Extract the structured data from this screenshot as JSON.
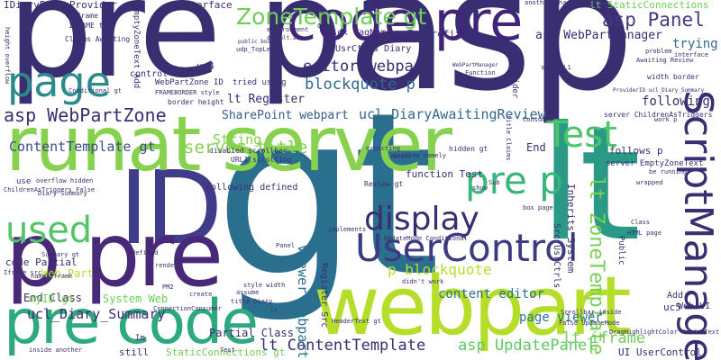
{
  "words": [
    {
      "text": "gt",
      "color": "#2b6f8e"
    },
    {
      "text": "asp",
      "color": "#3a2e72"
    },
    {
      "text": "lt",
      "color": "#2a9a86"
    },
    {
      "text": "pre p",
      "color": "#3a2e72"
    },
    {
      "text": "ID",
      "color": "#3f3c8a"
    },
    {
      "text": "runat server",
      "color": "#86d24f"
    },
    {
      "text": "webpart",
      "color": "#b5de2b"
    },
    {
      "text": "code pre",
      "color": "#41257a"
    },
    {
      "text": "pre code",
      "color": "#2ea87e"
    },
    {
      "text": "p pre",
      "color": "#482878"
    },
    {
      "text": "page",
      "color": "#2c8a8a"
    },
    {
      "text": "ScriptManager",
      "color": "#3a2e72"
    },
    {
      "text": "UserControl",
      "color": "#3d3a84"
    },
    {
      "text": "Test",
      "color": "#4dc36b"
    },
    {
      "text": "display",
      "color": "#3a2e72"
    },
    {
      "text": "used",
      "color": "#52c569"
    },
    {
      "text": "pre p",
      "color": "#35b779"
    },
    {
      "text": "ZoneTemplate gt",
      "color": "#6ece58"
    },
    {
      "text": "asp WebPartZone",
      "color": "#3a2e72"
    },
    {
      "text": "editor webpart",
      "color": "#3a2e72"
    },
    {
      "text": "blockquote p",
      "color": "#31688e"
    },
    {
      "text": "asp Panel",
      "color": "#3d3a84"
    },
    {
      "text": "asp WebPartManager",
      "color": "#3a2e72"
    },
    {
      "text": "SharePoint webpart",
      "color": "#355f8d"
    },
    {
      "text": "ucl_DiaryAwaitingReview",
      "color": "#31688e"
    },
    {
      "text": "ContentTemplate gt",
      "color": "#3e4a89"
    },
    {
      "text": "server title",
      "color": "#86d24f"
    },
    {
      "text": "lt ZoneTemplate",
      "color": "#7ad151"
    },
    {
      "text": "lt ContentTemplate",
      "color": "#3a2e72"
    },
    {
      "text": "asp UpdatePanel",
      "color": "#5ec962"
    },
    {
      "text": "content editor",
      "color": "#2c728e"
    },
    {
      "text": "page viewer",
      "color": "#2a788e"
    },
    {
      "text": "p blockquote",
      "color": "#b5de2b"
    },
    {
      "text": "viewer webpart",
      "color": "#2c728e"
    },
    {
      "text": "ucl_Diary_Summary",
      "color": "#3a2e72"
    },
    {
      "text": "lt iframe",
      "color": "#6ece58"
    },
    {
      "text": "String",
      "color": "#86d24f"
    },
    {
      "text": "Web Part",
      "color": "#b5de2b"
    },
    {
      "text": "End Class",
      "color": "#3a2e72"
    },
    {
      "text": "following",
      "color": "#3a2e72"
    },
    {
      "text": "trying",
      "color": "#31688e"
    },
    {
      "text": "code Partial",
      "color": "#3a2e72"
    },
    {
      "text": "lt Register",
      "color": "#3a2e72"
    },
    {
      "text": "UI UserControl",
      "color": "#3a2e72"
    },
    {
      "text": "System Web",
      "color": "#6ece58"
    },
    {
      "text": "myID gt",
      "color": "#7ad151"
    },
    {
      "text": "Partial Class",
      "color": "#3a2e72"
    },
    {
      "text": "StaticConnections gt",
      "color": "#6ece58"
    },
    {
      "text": "lt StaticConnections",
      "color": "#6ece58"
    },
    {
      "text": "iframe name",
      "color": "#3a2e72"
    },
    {
      "text": "IDiaryPartsProvider",
      "color": "#3a2e72"
    },
    {
      "text": "Interface",
      "color": "#3a2e72"
    },
    {
      "text": "UpdatePanel",
      "color": "#3a2e72"
    },
    {
      "text": "ascx TagName",
      "color": "#3a2e72"
    },
    {
      "text": "TagPrefix",
      "color": "#3a2e72"
    },
    {
      "text": "UsrCtrls Diary",
      "color": "#3a2e72"
    },
    {
      "text": "uc4",
      "color": "#3d3a84"
    },
    {
      "text": "End",
      "color": "#3a2e72"
    },
    {
      "text": "follows p",
      "color": "#3a2e72"
    },
    {
      "text": "server EmptyZoneText",
      "color": "#3a2e72"
    },
    {
      "text": "following defined",
      "color": "#3a2e72"
    },
    {
      "text": "function Test",
      "color": "#3a2e72"
    },
    {
      "text": "Register Src",
      "color": "#3a2e72"
    },
    {
      "text": "Inherits System",
      "color": "#3a2e72"
    },
    {
      "text": "Src UsrCtrls",
      "color": "#3a2e72"
    },
    {
      "text": "uc5",
      "color": "#3a2e72"
    },
    {
      "text": "Web UI",
      "color": "#3a2e72"
    },
    {
      "text": "Add",
      "color": "#3a2e72"
    },
    {
      "text": "Public",
      "color": "#3a2e72"
    },
    {
      "text": "still",
      "color": "#3a2e72"
    },
    {
      "text": "Im",
      "color": "#3a2e72"
    },
    {
      "text": "server ChildrenAsTriggers",
      "color": "#3a2e72"
    },
    {
      "text": "WebPartZone ID",
      "color": "#3a2e72"
    },
    {
      "text": "border height",
      "color": "#3a2e72"
    },
    {
      "text": "use",
      "color": "#3a2e72"
    },
    {
      "text": "Test",
      "color": "#3a2e72"
    },
    {
      "text": "control",
      "color": "#3a2e72"
    },
    {
      "text": "IFRAME tag",
      "color": "#3a2e72"
    },
    {
      "text": "Claims Awaiting",
      "color": "#3a2e72"
    },
    {
      "text": "Conditional gt",
      "color": "#3a2e72"
    },
    {
      "text": "EmptyZoneText Add",
      "color": "#3a2e72"
    },
    {
      "text": "height overflow",
      "color": "#3a2e72"
    },
    {
      "text": "tried using",
      "color": "#3a2e72"
    },
    {
      "text": "URL1 scrolling",
      "color": "#3a2e72"
    },
    {
      "text": "disabled scrollbar",
      "color": "#3a2e72"
    },
    {
      "text": "hidden gt",
      "color": "#3a2e72"
    },
    {
      "text": "Review gt",
      "color": "#3a2e72"
    },
    {
      "text": "Summary gt",
      "color": "#3a2e72"
    },
    {
      "text": "Diary Summary",
      "color": "#3a2e72"
    },
    {
      "text": "style width",
      "color": "#3a2e72"
    },
    {
      "text": "HTML page",
      "color": "#3a2e72"
    },
    {
      "text": "box page",
      "color": "#3a2e72"
    },
    {
      "text": "didn't work",
      "color": "#3a2e72"
    },
    {
      "text": "HeaderText gt",
      "color": "#3a2e72"
    },
    {
      "text": "DragHighlightColor HeaderText",
      "color": "#3a2e72"
    },
    {
      "text": "Scrollbar inside",
      "color": "#3a2e72"
    },
    {
      "text": "Iframe src",
      "color": "#3a2e72"
    },
    {
      "text": "name Iframe",
      "color": "#3a2e72"
    },
    {
      "text": "ChildrenAsTriggers False",
      "color": "#3a2e72"
    },
    {
      "text": "overflow hidden",
      "color": "#3a2e72"
    },
    {
      "text": "inside another",
      "color": "#3a2e72"
    },
    {
      "text": "environment",
      "color": "#3a2e72"
    },
    {
      "text": "another SharePoint",
      "color": "#3a2e72"
    },
    {
      "text": "Awaiting Review",
      "color": "#3a2e72"
    },
    {
      "text": "width border",
      "color": "#3a2e72"
    },
    {
      "text": "src URL1",
      "color": "#3a2e72"
    },
    {
      "text": "provider",
      "color": "#3a2e72"
    },
    {
      "text": "title Claims",
      "color": "#3a2e72"
    },
    {
      "text": "expecting",
      "color": "#3a2e72"
    },
    {
      "text": "problem namely",
      "color": "#3a2e72"
    },
    {
      "text": "title Diary",
      "color": "#3a2e72"
    },
    {
      "text": "Panel",
      "color": "#3a2e72"
    },
    {
      "text": "assume",
      "color": "#3a2e72"
    },
    {
      "text": "FRAMEBORDER style",
      "color": "#3a2e72"
    },
    {
      "text": "udp_TopLeft",
      "color": "#3a2e72"
    },
    {
      "text": "PM2",
      "color": "#3a2e72"
    },
    {
      "text": "ConnectionConsumer",
      "color": "#3a2e72"
    },
    {
      "text": "create",
      "color": "#3a2e72"
    },
    {
      "text": "render",
      "color": "#3a2e72"
    },
    {
      "text": "Class",
      "color": "#3a2e72"
    },
    {
      "text": "defined",
      "color": "#3a2e72"
    },
    {
      "text": "show",
      "color": "#3a2e72"
    },
    {
      "text": "Sub",
      "color": "#3a2e72"
    },
    {
      "text": "refresh",
      "color": "#3a2e72"
    },
    {
      "text": "Function",
      "color": "#3a2e72"
    },
    {
      "text": "Return",
      "color": "#3a2e72"
    },
    {
      "text": "Code",
      "color": "#3a2e72"
    },
    {
      "text": "work p",
      "color": "#3a2e72"
    },
    {
      "text": "be running",
      "color": "#3a2e72"
    },
    {
      "text": "wrapped",
      "color": "#3a2e72"
    },
    {
      "text": "UpdateMode Conditional",
      "color": "#3a2e72"
    },
    {
      "text": "implements",
      "color": "#3a2e72"
    },
    {
      "text": "Consumer",
      "color": "#3a2e72"
    },
    {
      "text": "lt",
      "color": "#3a2e72"
    },
    {
      "text": "False UpdateMode",
      "color": "#3a2e72"
    },
    {
      "text": "WebPartManager",
      "color": "#3a2e72"
    },
    {
      "text": "public bool",
      "color": "#3a2e72"
    },
    {
      "text": "default.aspx",
      "color": "#3a2e72"
    },
    {
      "text": "problem",
      "color": "#3a2e72"
    },
    {
      "text": "interface",
      "color": "#3a2e72"
    },
    {
      "text": "ProviderID ucl_Diary_Summary",
      "color": "#3a2e72"
    }
  ]
}
